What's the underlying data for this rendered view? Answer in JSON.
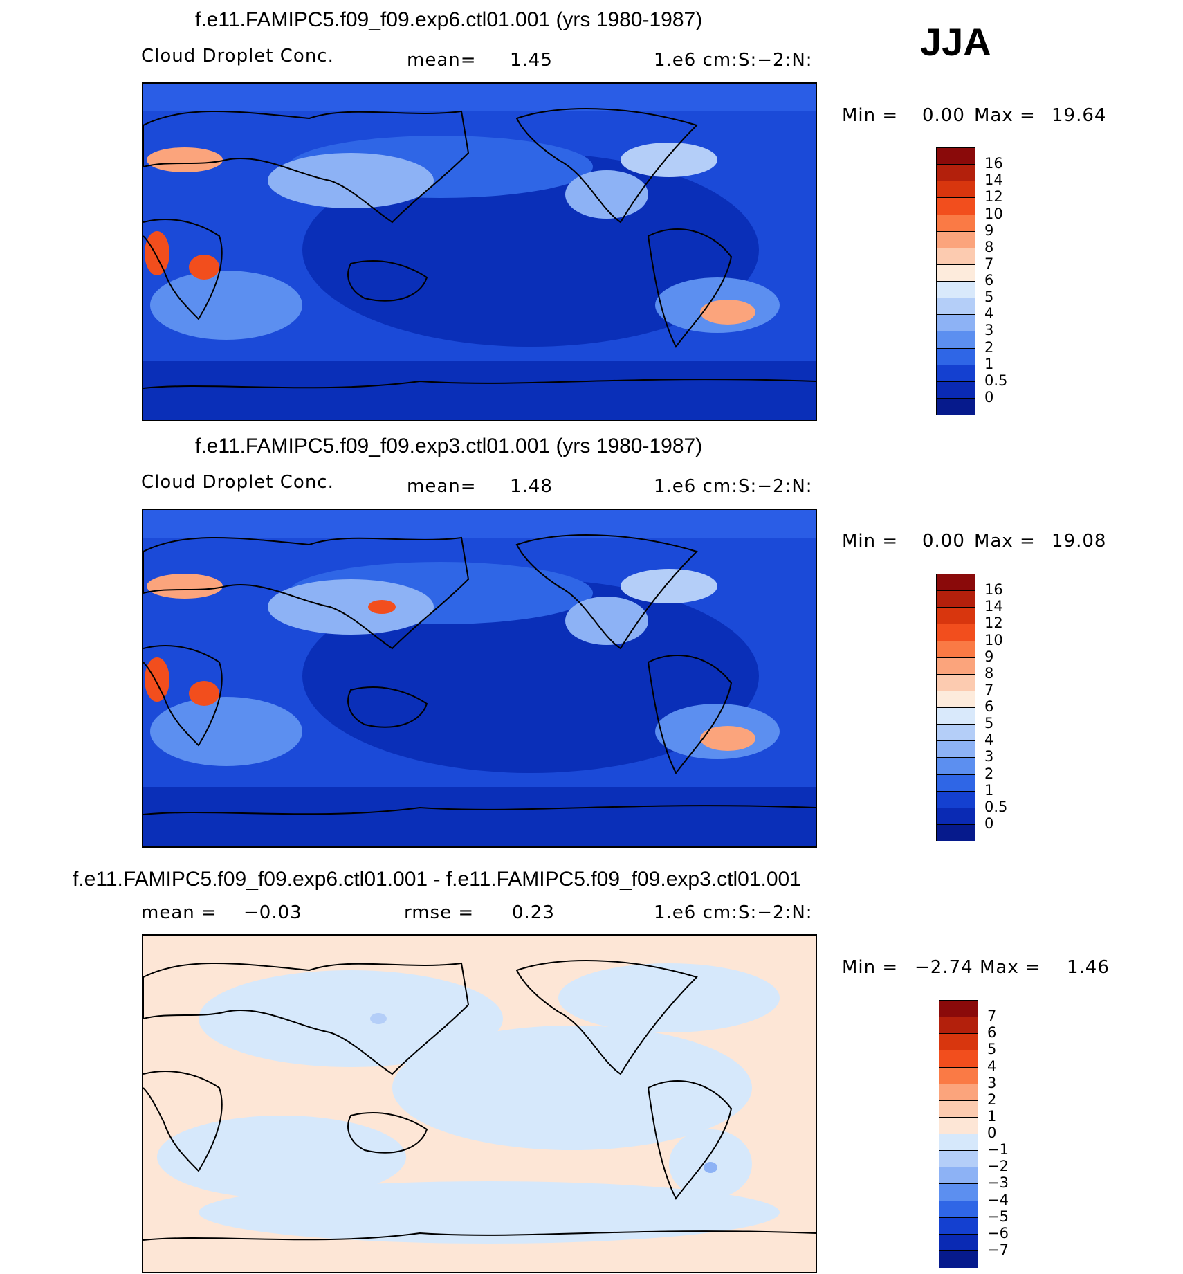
{
  "season": "JJA",
  "colors": {
    "ocean_deep": "#0a2fb8",
    "ocean_mid": "#1f4fe0",
    "land_light": "#8fb2f5",
    "polar": "#0922a8",
    "diff_pos": "#fde3d2",
    "diff_neg": "#d6e8fb"
  },
  "panels": [
    {
      "id": "exp6",
      "title": "f.e11.FAMIPC5.f09_f09.exp6.ctl01.001 (yrs 1980-1987)",
      "variable": "Cloud Droplet Conc.",
      "stat_label": "mean=",
      "stat_value": "1.45",
      "units": "1.e6 cm:S:−2:N:",
      "min_label": "Min =",
      "min_value": "0.00",
      "max_label": "Max =",
      "max_value": "19.64",
      "colorbar": {
        "labels": [
          "16",
          "14",
          "12",
          "10",
          "9",
          "8",
          "7",
          "6",
          "5",
          "4",
          "3",
          "2",
          "1",
          "0.5",
          "0"
        ],
        "colors": [
          "#8a0a0a",
          "#b3200c",
          "#d8360e",
          "#f24e1d",
          "#fa7a45",
          "#fba47c",
          "#fccbb0",
          "#fdebdc",
          "#d9e9fb",
          "#b4cef8",
          "#8db2f5",
          "#5c8ff0",
          "#2f66e6",
          "#1440d0",
          "#0a2ab4",
          "#061a8c"
        ]
      }
    },
    {
      "id": "exp3",
      "title": "f.e11.FAMIPC5.f09_f09.exp3.ctl01.001 (yrs 1980-1987)",
      "variable": "Cloud Droplet Conc.",
      "stat_label": "mean=",
      "stat_value": "1.48",
      "units": "1.e6 cm:S:−2:N:",
      "min_label": "Min =",
      "min_value": "0.00",
      "max_label": "Max =",
      "max_value": "19.08",
      "colorbar": {
        "labels": [
          "16",
          "14",
          "12",
          "10",
          "9",
          "8",
          "7",
          "6",
          "5",
          "4",
          "3",
          "2",
          "1",
          "0.5",
          "0"
        ],
        "colors": [
          "#8a0a0a",
          "#b3200c",
          "#d8360e",
          "#f24e1d",
          "#fa7a45",
          "#fba47c",
          "#fccbb0",
          "#fdebdc",
          "#d9e9fb",
          "#b4cef8",
          "#8db2f5",
          "#5c8ff0",
          "#2f66e6",
          "#1440d0",
          "#0a2ab4",
          "#061a8c"
        ]
      }
    },
    {
      "id": "diff",
      "title": "f.e11.FAMIPC5.f09_f09.exp6.ctl01.001 - f.e11.FAMIPC5.f09_f09.exp3.ctl01.001",
      "mean_label": "mean =",
      "mean_value": "−0.03",
      "rmse_label": "rmse =",
      "rmse_value": "0.23",
      "units": "1.e6 cm:S:−2:N:",
      "min_label": "Min =",
      "min_value": "−2.74",
      "max_label": "Max =",
      "max_value": "1.46",
      "colorbar": {
        "labels": [
          "7",
          "6",
          "5",
          "4",
          "3",
          "2",
          "1",
          "0",
          "−1",
          "−2",
          "−3",
          "−4",
          "−5",
          "−6",
          "−7"
        ],
        "colors": [
          "#8a0a0a",
          "#b3200c",
          "#d8360e",
          "#f24e1d",
          "#fa7a45",
          "#fba47c",
          "#fccbb0",
          "#fde6d6",
          "#d6e8fb",
          "#b4cef8",
          "#8db2f5",
          "#5c8ff0",
          "#2f66e6",
          "#1440d0",
          "#0a2ab4",
          "#061a8c"
        ]
      }
    }
  ]
}
